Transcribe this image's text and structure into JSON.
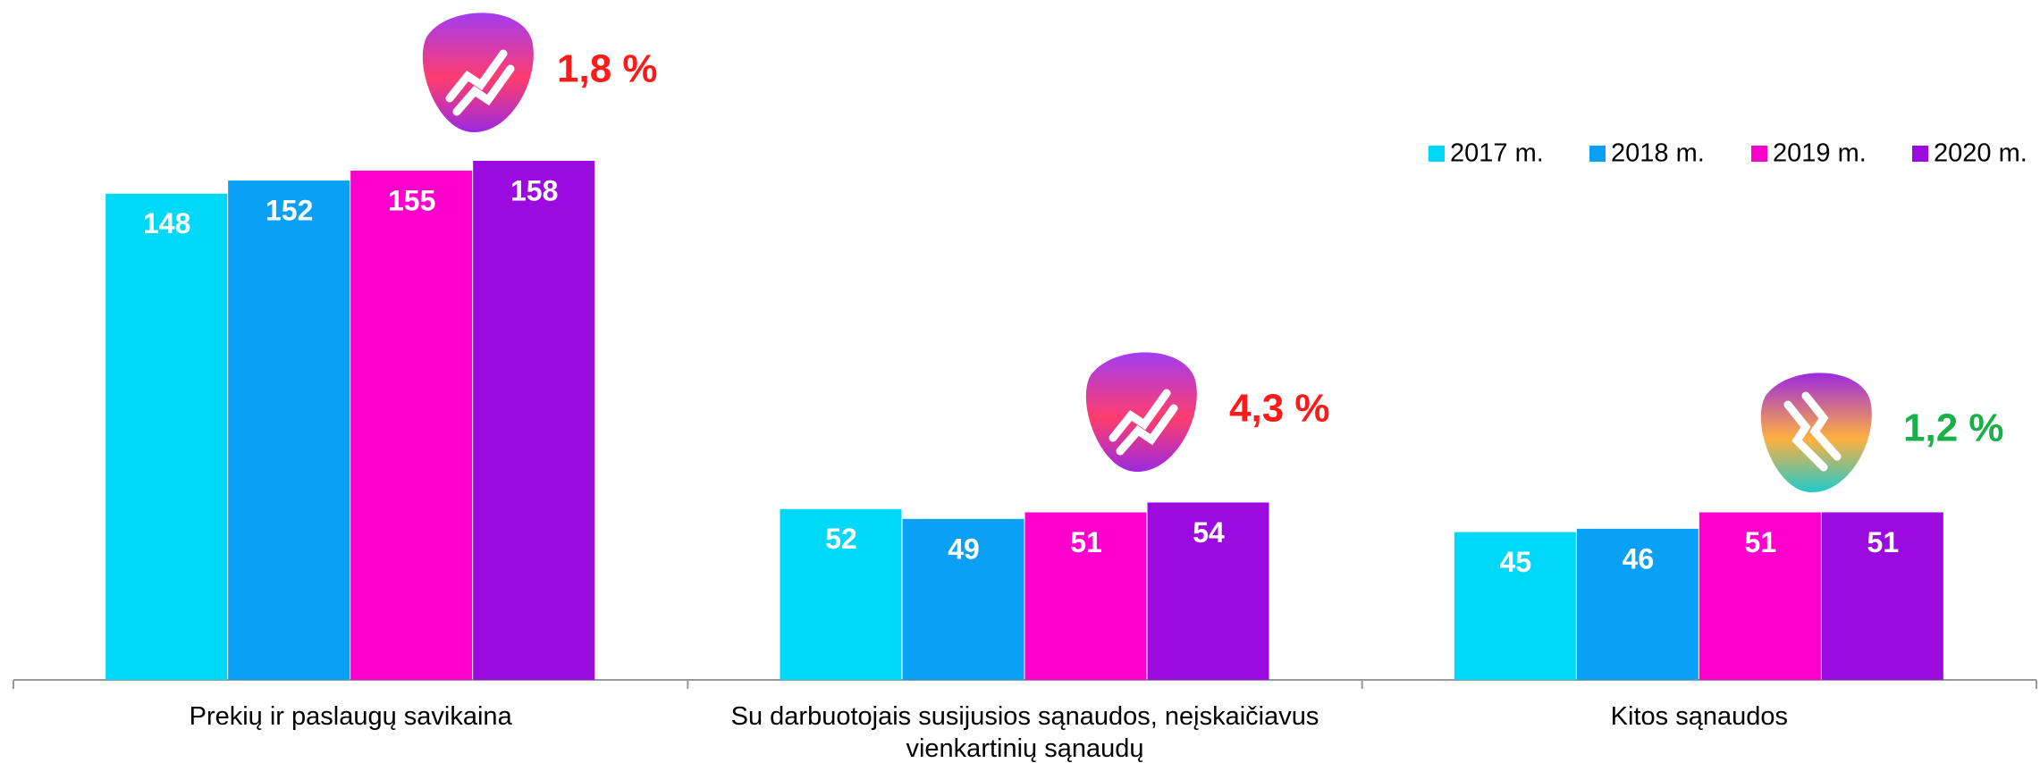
{
  "chart_data": {
    "type": "bar",
    "categories": [
      "Prekių ir paslaugų savikaina",
      "Su darbuotojais susijusios sąnaudos, neįskaičiavus vienkartinių sąnaudų",
      "Kitos sąnaudos"
    ],
    "series": [
      {
        "name": "2017 m.",
        "color": "#00d8f8",
        "values": [
          148,
          52,
          45
        ]
      },
      {
        "name": "2018 m.",
        "color": "#0aa0f5",
        "values": [
          152,
          49,
          46
        ]
      },
      {
        "name": "2019 m.",
        "color": "#ff00cc",
        "values": [
          155,
          51,
          51
        ]
      },
      {
        "name": "2020 m.",
        "color": "#9b0be0",
        "values": [
          158,
          54,
          51
        ]
      }
    ],
    "legend": "top-right",
    "annotations": [
      {
        "text": "1,8 %",
        "color": "#ff1a1a"
      },
      {
        "text": "4,3 %",
        "color": "#ff1a1a"
      },
      {
        "text": "1,2 %",
        "color": "#19b04a"
      }
    ]
  }
}
